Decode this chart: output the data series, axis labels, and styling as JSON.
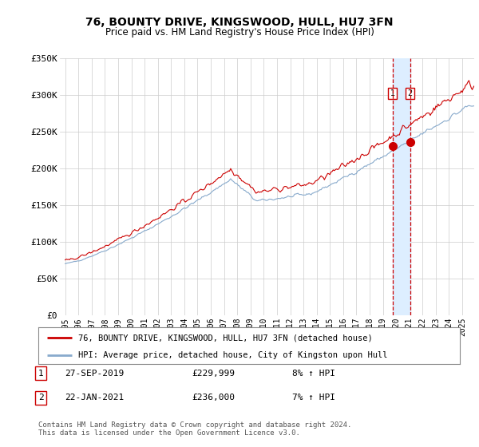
{
  "title": "76, BOUNTY DRIVE, KINGSWOOD, HULL, HU7 3FN",
  "subtitle": "Price paid vs. HM Land Registry's House Price Index (HPI)",
  "ylabel_ticks": [
    "£0",
    "£50K",
    "£100K",
    "£150K",
    "£200K",
    "£250K",
    "£300K",
    "£350K"
  ],
  "ylim": [
    0,
    350000
  ],
  "yticks": [
    0,
    50000,
    100000,
    150000,
    200000,
    250000,
    300000,
    350000
  ],
  "line1_color": "#cc0000",
  "line2_color": "#88aacc",
  "vline_color": "#cc0000",
  "shade_color": "#ddeeff",
  "grid_color": "#cccccc",
  "legend1": "76, BOUNTY DRIVE, KINGSWOOD, HULL, HU7 3FN (detached house)",
  "legend2": "HPI: Average price, detached house, City of Kingston upon Hull",
  "transaction1_date": "27-SEP-2019",
  "transaction1_price": "£229,999",
  "transaction1_hpi": "8% ↑ HPI",
  "transaction2_date": "22-JAN-2021",
  "transaction2_price": "£236,000",
  "transaction2_hpi": "7% ↑ HPI",
  "footer": "Contains HM Land Registry data © Crown copyright and database right 2024.\nThis data is licensed under the Open Government Licence v3.0.",
  "background_color": "#ffffff",
  "plot_bg_color": "#ffffff"
}
